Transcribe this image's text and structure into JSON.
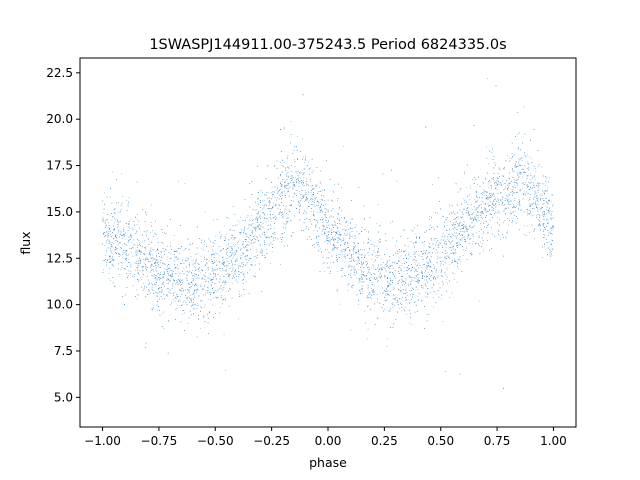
{
  "chart_data": {
    "type": "scatter",
    "title": "1SWASPJ144911.00-375243.5 Period 6824335.0s",
    "xlabel": "phase",
    "ylabel": "flux",
    "xlim": [
      -1.1,
      1.1
    ],
    "ylim": [
      3.4,
      23.3
    ],
    "x_ticks": [
      -1.0,
      -0.75,
      -0.5,
      -0.25,
      0.0,
      0.25,
      0.5,
      0.75,
      1.0
    ],
    "x_tick_labels": [
      "−1.00",
      "−0.75",
      "−0.50",
      "−0.25",
      "0.00",
      "0.25",
      "0.50",
      "0.75",
      "1.00"
    ],
    "y_ticks": [
      5.0,
      7.5,
      10.0,
      12.5,
      15.0,
      17.5,
      20.0,
      22.5
    ],
    "y_tick_labels": [
      "5.0",
      "7.5",
      "10.0",
      "12.5",
      "15.0",
      "17.5",
      "20.0",
      "22.5"
    ],
    "grid": false,
    "legend": "none",
    "series": [
      {
        "color": "#1f77b4",
        "marker": "point",
        "trend": {
          "phase": [
            -1.0,
            -0.9,
            -0.8,
            -0.7,
            -0.6,
            -0.5,
            -0.4,
            -0.3,
            -0.2,
            -0.15,
            -0.1,
            0.0,
            0.1,
            0.2,
            0.3,
            0.4,
            0.5,
            0.6,
            0.7,
            0.8,
            0.85,
            0.9,
            1.0
          ],
          "flux": [
            13.9,
            13.2,
            12.2,
            11.5,
            11.3,
            11.6,
            12.5,
            14.2,
            15.8,
            16.5,
            16.0,
            14.2,
            12.6,
            11.6,
            11.3,
            11.6,
            12.7,
            14.3,
            15.3,
            16.2,
            16.5,
            16.1,
            14.0
          ],
          "spread": 1.1
        }
      }
    ]
  }
}
